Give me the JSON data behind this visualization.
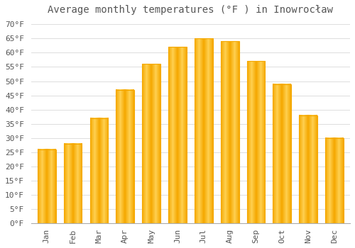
{
  "title": "Average monthly temperatures (°F ) in Inowrocław",
  "months": [
    "Jan",
    "Feb",
    "Mar",
    "Apr",
    "May",
    "Jun",
    "Jul",
    "Aug",
    "Sep",
    "Oct",
    "Nov",
    "Dec"
  ],
  "values": [
    26,
    28,
    37,
    47,
    56,
    62,
    65,
    64,
    57,
    49,
    38,
    30
  ],
  "bar_color_center": "#FFD050",
  "bar_color_edge": "#F5A800",
  "background_color": "#FFFFFF",
  "plot_bg_color": "#FFFFFF",
  "grid_color": "#DDDDDD",
  "text_color": "#555555",
  "ylim": [
    0,
    72
  ],
  "yticks": [
    0,
    5,
    10,
    15,
    20,
    25,
    30,
    35,
    40,
    45,
    50,
    55,
    60,
    65,
    70
  ],
  "title_fontsize": 10,
  "tick_fontsize": 8,
  "font_family": "monospace",
  "bar_width": 0.7
}
